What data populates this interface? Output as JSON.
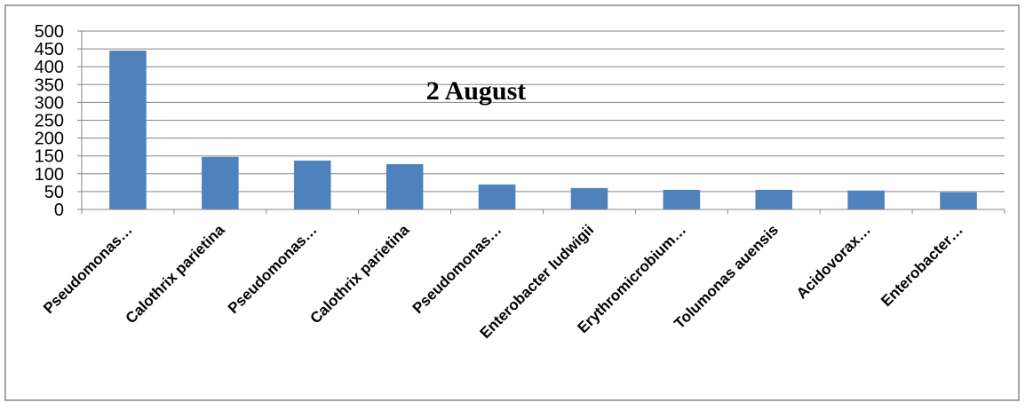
{
  "chart_data": {
    "type": "bar",
    "title": "2 August",
    "xlabel": "",
    "ylabel": "",
    "ylim": [
      0,
      500
    ],
    "yticks": [
      0,
      50,
      100,
      150,
      200,
      250,
      300,
      350,
      400,
      450,
      500
    ],
    "grid": true,
    "legend": "none",
    "bar_color": "#4f81bd",
    "categories": [
      "Pseudomonas…",
      "Calothrix parietina",
      "Pseudomonas…",
      "Calothrix parietina",
      "Pseudomonas…",
      "Enterobacter ludwigii",
      "Erythromicrobium…",
      "Tolumonas auensis",
      "Acidovorax…",
      "Enterobacter…"
    ],
    "values": [
      445,
      147,
      137,
      127,
      70,
      60,
      55,
      55,
      53,
      48
    ]
  }
}
